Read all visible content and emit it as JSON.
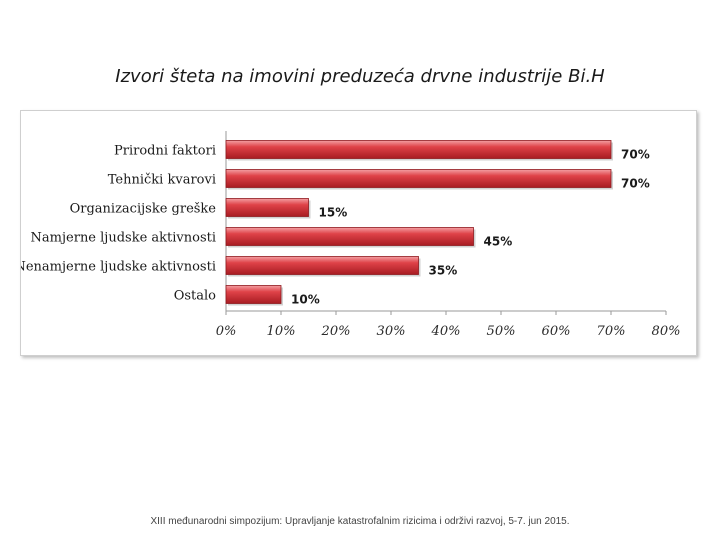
{
  "slide": {
    "title": "Izvori šteta na imovini preduzeća drvne industrije Bi.H",
    "footer": "XIII međunarodni simpozijum: Upravljanje katastrofalnim rizicima i održivi razvoj, 5-7. jun 2015."
  },
  "chart_data": {
    "type": "bar",
    "orientation": "horizontal",
    "title": "",
    "categories": [
      "Prirodni faktori",
      "Tehnički kvarovi",
      "Organizacijske greške",
      "Namjerne ljudske aktivnosti",
      "Nenamjerne ljudske aktivnosti",
      "Ostalo"
    ],
    "values": [
      70,
      70,
      15,
      45,
      35,
      10
    ],
    "data_labels": [
      "70%",
      "70%",
      "15%",
      "45%",
      "35%",
      "10%"
    ],
    "xlim": [
      0,
      80
    ],
    "x_ticks": [
      0,
      10,
      20,
      30,
      40,
      50,
      60,
      70,
      80
    ],
    "x_tick_labels": [
      "0%",
      "10%",
      "20%",
      "30%",
      "40%",
      "50%",
      "60%",
      "70%",
      "80%"
    ],
    "xlabel": "",
    "ylabel": "",
    "bar_color": "#d9363e",
    "grid": false,
    "legend": "none"
  }
}
